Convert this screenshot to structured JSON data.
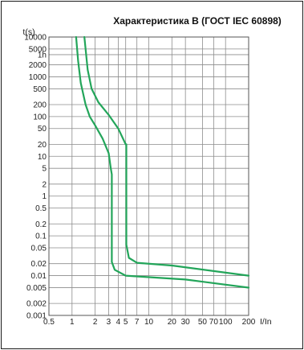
{
  "chart_data": {
    "type": "line",
    "title": "Характеристика B (ГОСТ IEC 60898)",
    "ylabel": "t(s)",
    "xlabel": "I/In",
    "x_scale": "log",
    "y_scale": "log",
    "x_ticks": [
      {
        "value": 0.5,
        "label": "0.5"
      },
      {
        "value": 1,
        "label": "1"
      },
      {
        "value": 2,
        "label": "2"
      },
      {
        "value": 3,
        "label": "3"
      },
      {
        "value": 4,
        "label": "4"
      },
      {
        "value": 5,
        "label": "5"
      },
      {
        "value": 7,
        "label": "7"
      },
      {
        "value": 10,
        "label": "10"
      },
      {
        "value": 20,
        "label": "20"
      },
      {
        "value": 30,
        "label": "30"
      },
      {
        "value": 50,
        "label": "50"
      },
      {
        "value": 70,
        "label": "70"
      },
      {
        "value": 100,
        "label": "100"
      },
      {
        "value": 200,
        "label": "200"
      }
    ],
    "y_ticks": [
      {
        "value": 10000,
        "label": "10000"
      },
      {
        "value": 5000,
        "label": "5000"
      },
      {
        "value": 3600,
        "label": "1h"
      },
      {
        "value": 2000,
        "label": "2000"
      },
      {
        "value": 1000,
        "label": "1000"
      },
      {
        "value": 500,
        "label": "500"
      },
      {
        "value": 200,
        "label": "200"
      },
      {
        "value": 100,
        "label": "100"
      },
      {
        "value": 50,
        "label": "50"
      },
      {
        "value": 20,
        "label": "20"
      },
      {
        "value": 10,
        "label": "10"
      },
      {
        "value": 5,
        "label": "5"
      },
      {
        "value": 2,
        "label": "2"
      },
      {
        "value": 1,
        "label": "1"
      },
      {
        "value": 0.5,
        "label": "0.5"
      },
      {
        "value": 0.2,
        "label": "0.2"
      },
      {
        "value": 0.1,
        "label": "0.1"
      },
      {
        "value": 0.05,
        "label": "0.05"
      },
      {
        "value": 0.02,
        "label": "0.02"
      },
      {
        "value": 0.01,
        "label": "0.01"
      },
      {
        "value": 0.005,
        "label": "0.005"
      },
      {
        "value": 0.002,
        "label": "0.002"
      },
      {
        "value": 0.001,
        "label": "0.001"
      }
    ],
    "xlim": [
      0.5,
      200
    ],
    "ylim": [
      0.001,
      10000
    ],
    "grid": true,
    "color": "#23a55a",
    "series": [
      {
        "points": [
          [
            1.13,
            10000
          ],
          [
            1.2,
            2500
          ],
          [
            1.3,
            700
          ],
          [
            1.5,
            200
          ],
          [
            1.7,
            100
          ],
          [
            2,
            60
          ],
          [
            2.5,
            28
          ],
          [
            3,
            12
          ],
          [
            3.2,
            5
          ],
          [
            3.3,
            3.5
          ],
          [
            3.3,
            0.08
          ],
          [
            3.3,
            0.022
          ],
          [
            3.6,
            0.014
          ],
          [
            5,
            0.01
          ],
          [
            30,
            0.008
          ],
          [
            200,
            0.005
          ]
        ]
      },
      {
        "points": [
          [
            1.45,
            10000
          ],
          [
            1.6,
            1500
          ],
          [
            1.8,
            500
          ],
          [
            2.2,
            230
          ],
          [
            3,
            110
          ],
          [
            4,
            50
          ],
          [
            5,
            20
          ],
          [
            5.1,
            20
          ],
          [
            5.1,
            0.06
          ],
          [
            5.5,
            0.028
          ],
          [
            7,
            0.021
          ],
          [
            20,
            0.018
          ],
          [
            200,
            0.01
          ]
        ]
      }
    ]
  }
}
